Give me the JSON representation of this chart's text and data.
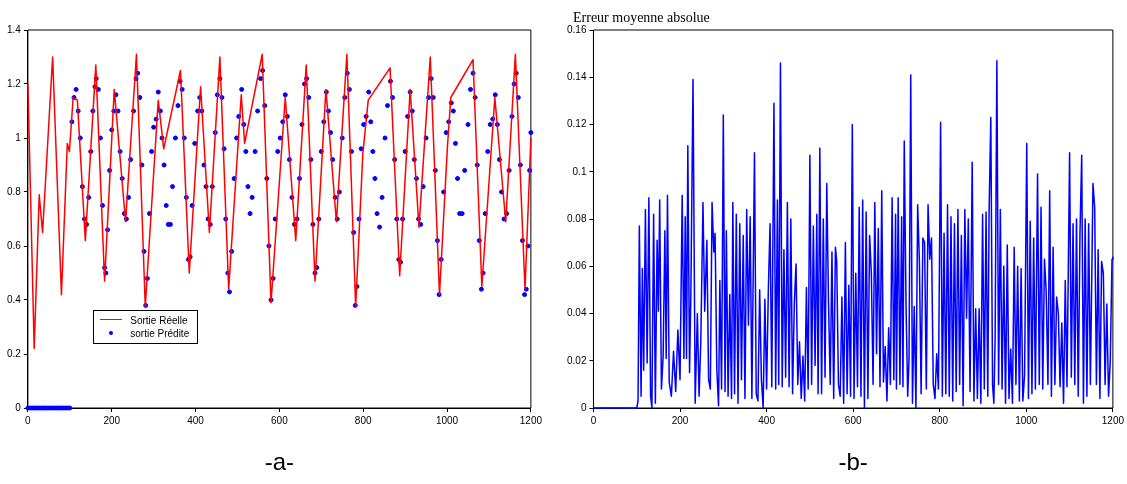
{
  "chart_data": [
    {
      "type": "line",
      "xlim": [
        0,
        1200
      ],
      "xticks": [
        0,
        200,
        400,
        600,
        800,
        1000,
        1200
      ],
      "ylim": [
        0,
        1.4
      ],
      "yticks": [
        0,
        0.2,
        0.4,
        0.6,
        0.8,
        1,
        1.2,
        1.4
      ],
      "grid": false,
      "legend": "bottom left",
      "annotations": [
        "-a-"
      ],
      "series": [
        {
          "name": "Sortie Réelle",
          "color": "#ff0000",
          "marker": "none",
          "x": [
            0,
            15,
            27,
            35,
            59,
            80,
            94,
            99,
            108,
            118,
            137,
            162,
            183,
            206,
            233,
            259,
            280,
            311,
            324,
            364,
            385,
            412,
            433,
            458,
            479,
            509,
            517,
            559,
            580,
            614,
            639,
            664,
            685,
            711,
            736,
            761,
            782,
            799,
            812,
            864,
            887,
            912,
            933,
            960,
            982,
            1001,
            1009,
            1062,
            1083,
            1114,
            1140,
            1163,
            1186,
            1200
          ],
          "values": [
            1.2,
            0.22,
            0.79,
            0.65,
            1.3,
            0.42,
            0.98,
            0.95,
            1.15,
            1.14,
            0.62,
            1.27,
            0.47,
            1.18,
            0.69,
            1.31,
            0.375,
            1.14,
            0.96,
            1.25,
            0.5,
            1.19,
            0.65,
            1.3,
            0.44,
            1.16,
            0.98,
            1.31,
            0.39,
            1.15,
            0.62,
            1.27,
            0.47,
            1.18,
            0.69,
            1.31,
            0.375,
            0.94,
            1.14,
            1.26,
            0.49,
            1.18,
            0.67,
            1.3,
            0.42,
            0.97,
            1.15,
            1.29,
            0.45,
            1.15,
            0.69,
            1.31,
            0.44,
            1.0
          ]
        },
        {
          "name": "sortie Prédite",
          "type": "scatter",
          "color": "#0000ff",
          "marker": "circle",
          "x": [
            0,
            5,
            10,
            15,
            20,
            25,
            30,
            35,
            40,
            45,
            50,
            55,
            60,
            65,
            70,
            75,
            80,
            85,
            90,
            95,
            100,
            105,
            110,
            115,
            120,
            125,
            130,
            135,
            140,
            145,
            150,
            155,
            160,
            163,
            168,
            173,
            178,
            183,
            186,
            190,
            195,
            200,
            205,
            210,
            215,
            220,
            225,
            230,
            235,
            240,
            245,
            252,
            258,
            262,
            267,
            272,
            277,
            281,
            285,
            290,
            295,
            300,
            306,
            311,
            316,
            320,
            325,
            330,
            335,
            340,
            345,
            352,
            358,
            363,
            368,
            373,
            378,
            383,
            387,
            392,
            398,
            405,
            410,
            415,
            420,
            425,
            430,
            435,
            440,
            447,
            452,
            458,
            463,
            468,
            472,
            477,
            481,
            486,
            492,
            498,
            503,
            510,
            515,
            520,
            525,
            530,
            535,
            542,
            548,
            555,
            560,
            565,
            570,
            575,
            580,
            585,
            590,
            596,
            602,
            608,
            614,
            619,
            624,
            630,
            636,
            642,
            648,
            654,
            660,
            665,
            670,
            675,
            680,
            685,
            689,
            694,
            700,
            706,
            712,
            717,
            722,
            727,
            733,
            738,
            743,
            750,
            756,
            762,
            767,
            772,
            777,
            781,
            785,
            790,
            795,
            801,
            807,
            813,
            818,
            823,
            828,
            833,
            839,
            845,
            852,
            858,
            865,
            870,
            875,
            880,
            885,
            889,
            894,
            900,
            906,
            912,
            917,
            922,
            927,
            932,
            937,
            943,
            950,
            956,
            962,
            967,
            972,
            977,
            981,
            986,
            992,
            998,
            1004,
            1010,
            1015,
            1020,
            1025,
            1030,
            1036,
            1042,
            1050,
            1056,
            1062,
            1067,
            1072,
            1077,
            1082,
            1086,
            1091,
            1097,
            1103,
            1109,
            1115,
            1120,
            1125,
            1130,
            1136,
            1142,
            1148,
            1155,
            1160,
            1165,
            1170,
            1175,
            1180,
            1185,
            1189,
            1193,
            1197,
            1200
          ],
          "values": [
            0,
            0,
            0,
            0,
            0,
            0,
            0,
            0,
            0,
            0,
            0,
            0,
            0,
            0,
            0,
            0,
            0,
            0,
            0,
            0,
            0,
            1.06,
            1.15,
            1.18,
            1.1,
            1.0,
            0.82,
            0.7,
            0.68,
            0.78,
            0.95,
            1.1,
            1.19,
            1.22,
            1.18,
            1.0,
            0.75,
            0.52,
            0.5,
            0.66,
            0.88,
            1.03,
            1.1,
            1.16,
            1.1,
            0.95,
            0.85,
            0.72,
            0.7,
            0.78,
            0.92,
            1.1,
            1.22,
            1.24,
            1.15,
            0.9,
            0.58,
            0.38,
            0.48,
            0.72,
            0.95,
            1.04,
            1.07,
            1.17,
            1.1,
            1.0,
            0.9,
            0.75,
            0.68,
            0.68,
            0.82,
            1.0,
            1.12,
            1.21,
            1.18,
            1.0,
            0.78,
            0.55,
            0.56,
            0.75,
            0.98,
            1.1,
            1.15,
            1.1,
            0.9,
            0.82,
            0.7,
            0.68,
            0.82,
            1.02,
            1.16,
            1.22,
            1.15,
            0.96,
            0.7,
            0.5,
            0.43,
            0.58,
            0.85,
            1.0,
            1.08,
            1.18,
            1.05,
            0.95,
            0.82,
            0.72,
            0.78,
            0.95,
            1.1,
            1.22,
            1.25,
            1.12,
            0.85,
            0.6,
            0.4,
            0.48,
            0.7,
            0.95,
            1.0,
            1.06,
            1.16,
            1.08,
            0.92,
            0.78,
            0.68,
            0.7,
            0.85,
            1.05,
            1.2,
            1.22,
            1.15,
            0.92,
            0.68,
            0.5,
            0.52,
            0.7,
            0.95,
            1.06,
            1.17,
            1.1,
            1.02,
            0.92,
            0.78,
            0.7,
            0.8,
            1.0,
            1.15,
            1.24,
            1.18,
            0.95,
            0.65,
            0.38,
            0.45,
            0.7,
            0.96,
            1.05,
            1.08,
            1.17,
            1.06,
            0.95,
            0.85,
            0.72,
            0.67,
            0.78,
            1.0,
            1.12,
            1.21,
            1.15,
            0.92,
            0.7,
            0.55,
            0.54,
            0.7,
            0.95,
            1.08,
            1.17,
            1.1,
            0.92,
            0.85,
            0.7,
            0.68,
            0.82,
            1.0,
            1.15,
            1.22,
            1.15,
            0.88,
            0.62,
            0.42,
            0.55,
            0.8,
            1.02,
            1.06,
            1.13,
            1.1,
            0.98,
            0.85,
            0.72,
            0.72,
            0.88,
            1.05,
            1.18,
            1.24,
            1.15,
            0.9,
            0.62,
            0.44,
            0.5,
            0.72,
            0.95,
            1.05,
            1.07,
            1.16,
            1.05,
            0.92,
            0.8,
            0.7,
            0.72,
            0.88,
            1.08,
            1.2,
            1.24,
            1.15,
            0.9,
            0.62,
            0.42,
            0.44,
            0.6,
            0.88,
            1.02
          ]
        }
      ]
    },
    {
      "type": "line",
      "title": "Erreur moyenne absolue",
      "xlim": [
        0,
        1200
      ],
      "xticks": [
        0,
        200,
        400,
        600,
        800,
        1000,
        1200
      ],
      "ylim": [
        0,
        0.16
      ],
      "yticks": [
        0,
        0.02,
        0.04,
        0.06,
        0.08,
        0.1,
        0.12,
        0.14,
        0.16
      ],
      "grid": false,
      "annotations": [
        "-b-"
      ],
      "series": [
        {
          "color": "#0000ff",
          "x": [
            0,
            100,
            103,
            106,
            110,
            113,
            116,
            120,
            124,
            128,
            132,
            135,
            139,
            143,
            147,
            150,
            153,
            157,
            161,
            165,
            168,
            171,
            175,
            180,
            185,
            190,
            195,
            200,
            205,
            209,
            212,
            215,
            218,
            222,
            225,
            230,
            235,
            240,
            244,
            248,
            253,
            257,
            262,
            266,
            270,
            274,
            278,
            281,
            285,
            289,
            292,
            296,
            300,
            304,
            307,
            311,
            315,
            319,
            322,
            326,
            330,
            334,
            338,
            342,
            346,
            350,
            354,
            358,
            362,
            366,
            372,
            376,
            380,
            384,
            388,
            392,
            396,
            400,
            404,
            408,
            412,
            417,
            421,
            425,
            428,
            432,
            436,
            440,
            444,
            448,
            452,
            456,
            460,
            464,
            468,
            472,
            476,
            480,
            484,
            488,
            492,
            496,
            500,
            504,
            508,
            512,
            516,
            519,
            523,
            527,
            531,
            535,
            539,
            543,
            547,
            551,
            555,
            559,
            562,
            566,
            570,
            574,
            578,
            582,
            586,
            590,
            594,
            598,
            602,
            606,
            610,
            614,
            618,
            622,
            626,
            630,
            634,
            638,
            642,
            646,
            650,
            654,
            658,
            662,
            666,
            670,
            674,
            678,
            682,
            686,
            690,
            694,
            698,
            700,
            704,
            708,
            712,
            715,
            718,
            722,
            726,
            729,
            733,
            737,
            741,
            745,
            749,
            753,
            757,
            761,
            765,
            769,
            773,
            777,
            781,
            785,
            789,
            793,
            797,
            802,
            806,
            810,
            814,
            818,
            822,
            826,
            830,
            834,
            838,
            842,
            846,
            850,
            854,
            858,
            862,
            866,
            870,
            875,
            879,
            883,
            887,
            891,
            895,
            899,
            903,
            907,
            911,
            914,
            918,
            922,
            925,
            928,
            932,
            936,
            940,
            944,
            948,
            952,
            956,
            960,
            964,
            968,
            972,
            976,
            980,
            984,
            988,
            992,
            996,
            1001,
            1005,
            1009,
            1013,
            1017,
            1021,
            1026,
            1030,
            1034,
            1038,
            1042,
            1046,
            1050,
            1054,
            1058,
            1062,
            1066,
            1070,
            1074,
            1078,
            1082,
            1086,
            1090,
            1094,
            1100,
            1104,
            1108,
            1112,
            1116,
            1120,
            1124,
            1128,
            1132,
            1136,
            1140,
            1144,
            1148,
            1154,
            1158,
            1162,
            1166,
            1170,
            1174,
            1178,
            1182,
            1186,
            1190,
            1194,
            1198,
            1200
          ],
          "values": [
            0,
            0,
            0.003,
            0.077,
            0.005,
            0.059,
            0.016,
            0.084,
            0.019,
            0.089,
            0.005,
            0.0,
            0.082,
            0.002,
            0.071,
            0.041,
            0.088,
            0.008,
            0.022,
            0.075,
            0.021,
            0.09,
            0.011,
            0.005,
            0.024,
            0.007,
            0.033,
            0.012,
            0.09,
            0.021,
            0.081,
            0.021,
            0.111,
            0.015,
            0.048,
            0.139,
            0.002,
            0.04,
            0.005,
            0.028,
            0.087,
            0.041,
            0.071,
            0.012,
            0.008,
            0.087,
            0.066,
            0.074,
            0.016,
            0.001,
            0.054,
            0.008,
            0.124,
            0.007,
            0.075,
            0.005,
            0.048,
            0.004,
            0.087,
            0.006,
            0.082,
            0.002,
            0.078,
            0.012,
            0.073,
            0.004,
            0.084,
            0.035,
            0.081,
            0.004,
            0.108,
            0.006,
            0.003,
            0.05,
            0.012,
            0.0,
            0.046,
            0.008,
            0.05,
            0.078,
            0.009,
            0.129,
            0.008,
            0.088,
            0.01,
            0.146,
            0.009,
            0.067,
            0.013,
            0.087,
            0.009,
            0.08,
            0.006,
            0.044,
            0.061,
            0.01,
            0.028,
            0.004,
            0.022,
            0.003,
            0.051,
            0.008,
            0.107,
            0.01,
            0.077,
            0.018,
            0.082,
            0.006,
            0.11,
            0.006,
            0.08,
            0.013,
            0.095,
            0.045,
            0.01,
            0.066,
            0.004,
            0.068,
            0.062,
            0.01,
            0.005,
            0.047,
            0.002,
            0.07,
            0.006,
            0.052,
            0.005,
            0.12,
            0.004,
            0.057,
            0.009,
            0.085,
            0.005,
            0.088,
            0.0,
            0.083,
            0.004,
            0.073,
            0.057,
            0.01,
            0.087,
            0.023,
            0.076,
            0.009,
            0.092,
            0.011,
            0.026,
            0.003,
            0.034,
            0.01,
            0.089,
            0.012,
            0.082,
            0.008,
            0.089,
            0.01,
            0.081,
            0.009,
            0.113,
            0.045,
            0.005,
            0.02,
            0.141,
            0.002,
            0.043,
            0.0,
            0.086,
            0.062,
            0.006,
            0.072,
            0.07,
            0.008,
            0.086,
            0.063,
            0.072,
            0.01,
            0.004,
            0.023,
            0.008,
            0.121,
            0.005,
            0.074,
            0.006,
            0.086,
            0.005,
            0.081,
            0.003,
            0.078,
            0.007,
            0.084,
            0.01,
            0.073,
            0.001,
            0.084,
            0.038,
            0.08,
            0.007,
            0.104,
            0.003,
            0.042,
            0.004,
            0.042,
            0.002,
            0.082,
            0.008,
            0.083,
            0.005,
            0.083,
            0.123,
            0.01,
            0.002,
            0.03,
            0.147,
            0.01,
            0.084,
            0.008,
            0.06,
            0.002,
            0.069,
            0.004,
            0.025,
            0.002,
            0.068,
            0.01,
            0.06,
            0.003,
            0.059,
            0.003,
            0.014,
            0.112,
            0.004,
            0.079,
            0.006,
            0.072,
            0.008,
            0.099,
            0.01,
            0.085,
            0.008,
            0.063,
            0.049,
            0.01,
            0.092,
            0.005,
            0.068,
            0.01,
            0.047,
            0.04,
            0.009,
            0.036,
            0.002,
            0.054,
            0.009,
            0.108,
            0.013,
            0.078,
            0.01,
            0.08,
            0.005,
            0.074,
            0.107,
            0.002,
            0.08,
            0.005,
            0.078,
            0.01,
            0.095,
            0.085,
            0.01,
            0.067,
            0.004,
            0.062,
            0.057,
            0.01,
            0.044,
            0.005,
            0.02,
            0.063,
            0.064
          ]
        }
      ]
    }
  ]
}
